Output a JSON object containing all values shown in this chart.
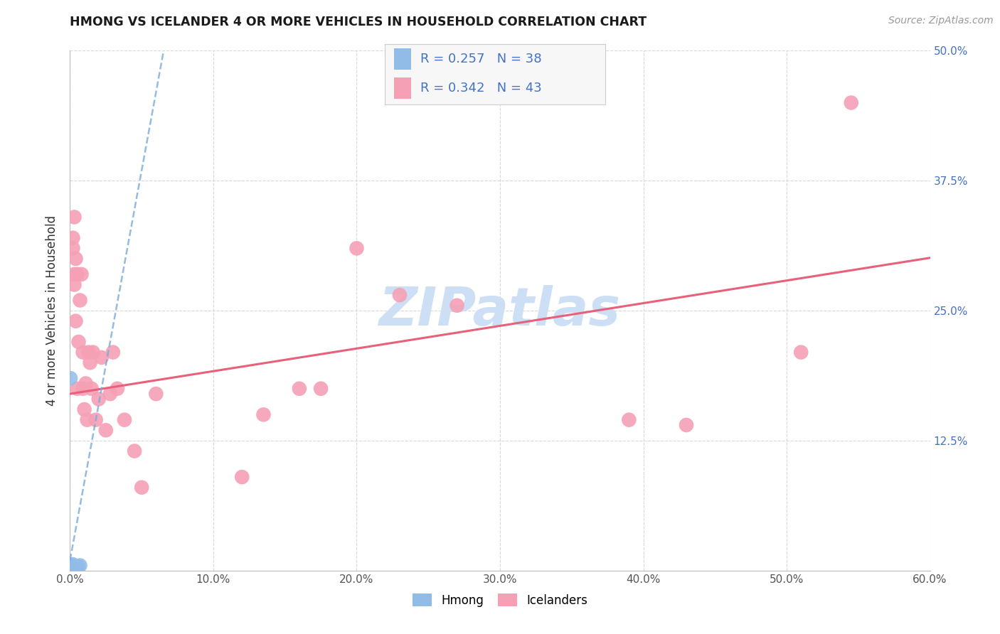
{
  "title": "HMONG VS ICELANDER 4 OR MORE VEHICLES IN HOUSEHOLD CORRELATION CHART",
  "source": "Source: ZipAtlas.com",
  "ylabel": "4 or more Vehicles in Household",
  "xlim": [
    0.0,
    0.6
  ],
  "ylim": [
    0.0,
    0.5
  ],
  "xticks": [
    0.0,
    0.1,
    0.2,
    0.3,
    0.4,
    0.5,
    0.6
  ],
  "yticks": [
    0.0,
    0.125,
    0.25,
    0.375,
    0.5
  ],
  "xticklabels": [
    "0.0%",
    "10.0%",
    "20.0%",
    "30.0%",
    "40.0%",
    "50.0%",
    "60.0%"
  ],
  "yticklabels_right": [
    "",
    "12.5%",
    "25.0%",
    "37.5%",
    "50.0%"
  ],
  "hmong_color": "#92bce8",
  "icelander_color": "#f5a0b5",
  "hmong_line_color": "#7baad8",
  "icelander_line_color": "#e8607a",
  "legend_color": "#4472c4",
  "watermark": "ZIPatlas",
  "watermark_color": "#ccdff5",
  "background_color": "#ffffff",
  "grid_color": "#d8d8d8",
  "title_fontsize": 12.5,
  "source_fontsize": 10,
  "tick_fontsize": 11,
  "ylabel_fontsize": 12,
  "hmong_R": 0.257,
  "hmong_N": 38,
  "icelander_R": 0.342,
  "icelander_N": 43,
  "icel_intercept": 0.17,
  "icel_slope": 0.218,
  "hmong_intercept": 0.01,
  "hmong_slope": 7.5,
  "hmong_x": [
    0.0002,
    0.0003,
    0.0004,
    0.0005,
    0.0006,
    0.0007,
    0.0008,
    0.0009,
    0.001,
    0.001,
    0.001,
    0.0011,
    0.0012,
    0.0013,
    0.0014,
    0.0015,
    0.0016,
    0.0017,
    0.0018,
    0.0019,
    0.002,
    0.0021,
    0.0022,
    0.0023,
    0.0024,
    0.0025,
    0.0026,
    0.0027,
    0.0028,
    0.003,
    0.0032,
    0.0035,
    0.004,
    0.0045,
    0.005,
    0.006,
    0.007,
    0.0003
  ],
  "hmong_y": [
    0.0,
    0.0,
    0.0,
    0.0,
    0.0,
    0.001,
    0.001,
    0.001,
    0.001,
    0.002,
    0.002,
    0.002,
    0.003,
    0.003,
    0.004,
    0.004,
    0.005,
    0.005,
    0.006,
    0.0,
    0.001,
    0.001,
    0.002,
    0.002,
    0.003,
    0.003,
    0.004,
    0.0,
    0.001,
    0.002,
    0.003,
    0.004,
    0.003,
    0.004,
    0.003,
    0.004,
    0.005,
    0.185
  ],
  "icelander_x": [
    0.002,
    0.002,
    0.003,
    0.003,
    0.004,
    0.005,
    0.005,
    0.006,
    0.007,
    0.008,
    0.009,
    0.009,
    0.01,
    0.011,
    0.012,
    0.013,
    0.014,
    0.015,
    0.016,
    0.018,
    0.02,
    0.022,
    0.025,
    0.028,
    0.03,
    0.033,
    0.038,
    0.045,
    0.05,
    0.06,
    0.12,
    0.135,
    0.16,
    0.175,
    0.2,
    0.23,
    0.27,
    0.39,
    0.43,
    0.51,
    0.545,
    0.003,
    0.004
  ],
  "icelander_y": [
    0.32,
    0.31,
    0.275,
    0.285,
    0.3,
    0.175,
    0.285,
    0.22,
    0.26,
    0.285,
    0.175,
    0.21,
    0.155,
    0.18,
    0.145,
    0.21,
    0.2,
    0.175,
    0.21,
    0.145,
    0.165,
    0.205,
    0.135,
    0.17,
    0.21,
    0.175,
    0.145,
    0.115,
    0.08,
    0.17,
    0.09,
    0.15,
    0.175,
    0.175,
    0.31,
    0.265,
    0.255,
    0.145,
    0.14,
    0.21,
    0.45,
    0.34,
    0.24
  ]
}
